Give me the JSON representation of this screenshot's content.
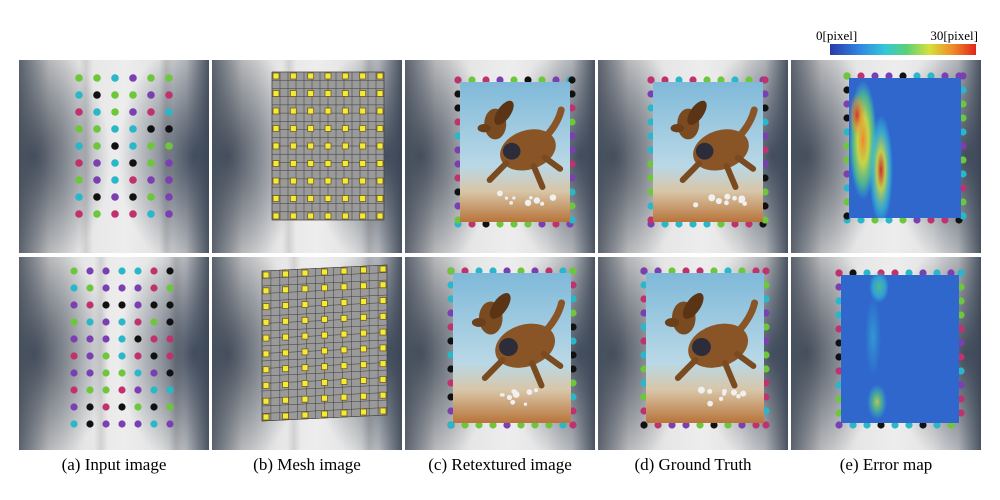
{
  "colorbar": {
    "min_label": "0[pixel]",
    "max_label": "30[pixel]",
    "colors": [
      "#2a3aa8",
      "#2f86e0",
      "#35c8d8",
      "#57d17a",
      "#d6e03a",
      "#f08a2a",
      "#e0251e"
    ]
  },
  "captions": [
    "(a) Input image",
    "(b) Mesh image",
    "(c) Retextured image",
    "(d) Ground Truth",
    "(e) Error map"
  ],
  "marker_colors": [
    "#2ab7c9",
    "#7a3fb0",
    "#6ec63a",
    "#c0326e",
    "#111111"
  ],
  "mesh_marker_color": "#f0ec3a"
}
